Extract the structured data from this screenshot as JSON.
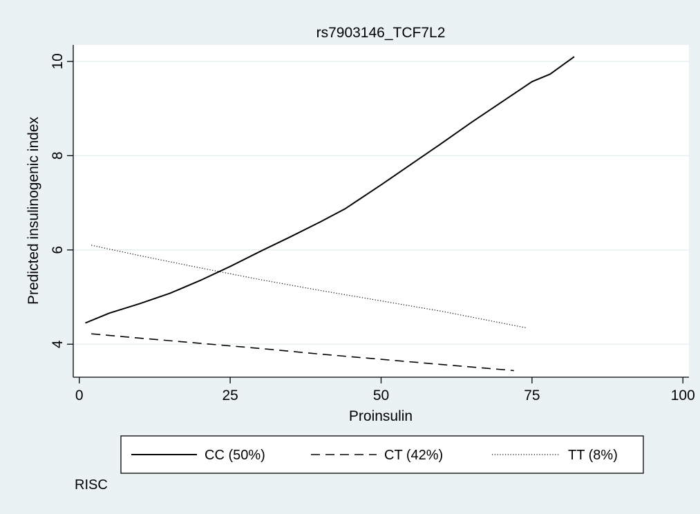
{
  "chart_data": {
    "type": "line",
    "title": "rs7903146_TCF7L2",
    "xlabel": "Proinsulin",
    "ylabel": "Predicted insulinogenic index",
    "note": "RISC",
    "xlim": [
      -1,
      101
    ],
    "ylim": [
      3.3,
      10.35
    ],
    "xticks": [
      0,
      25,
      50,
      75,
      100
    ],
    "yticks": [
      4,
      6,
      8,
      10
    ],
    "grid": "horizontal",
    "legend_position": "bottom",
    "series": [
      {
        "name": "CC (50%)",
        "style": "solid",
        "x": [
          1,
          5,
          10,
          15,
          20,
          25,
          30,
          35,
          40,
          44,
          50,
          55,
          60,
          65,
          70,
          75,
          78,
          82
        ],
        "y": [
          4.45,
          4.66,
          4.86,
          5.08,
          5.35,
          5.65,
          5.97,
          6.28,
          6.6,
          6.87,
          7.38,
          7.82,
          8.26,
          8.71,
          9.14,
          9.57,
          9.73,
          10.1
        ]
      },
      {
        "name": "CT (42%)",
        "style": "dashed",
        "x": [
          2,
          10,
          20,
          30,
          40,
          50,
          60,
          72
        ],
        "y": [
          4.22,
          4.13,
          4.02,
          3.91,
          3.79,
          3.68,
          3.57,
          3.44
        ]
      },
      {
        "name": "TT (8%)",
        "style": "dotted",
        "x": [
          2,
          10,
          20,
          30,
          40,
          50,
          60,
          74
        ],
        "y": [
          6.1,
          5.88,
          5.62,
          5.37,
          5.14,
          4.92,
          4.7,
          4.35
        ]
      }
    ]
  }
}
